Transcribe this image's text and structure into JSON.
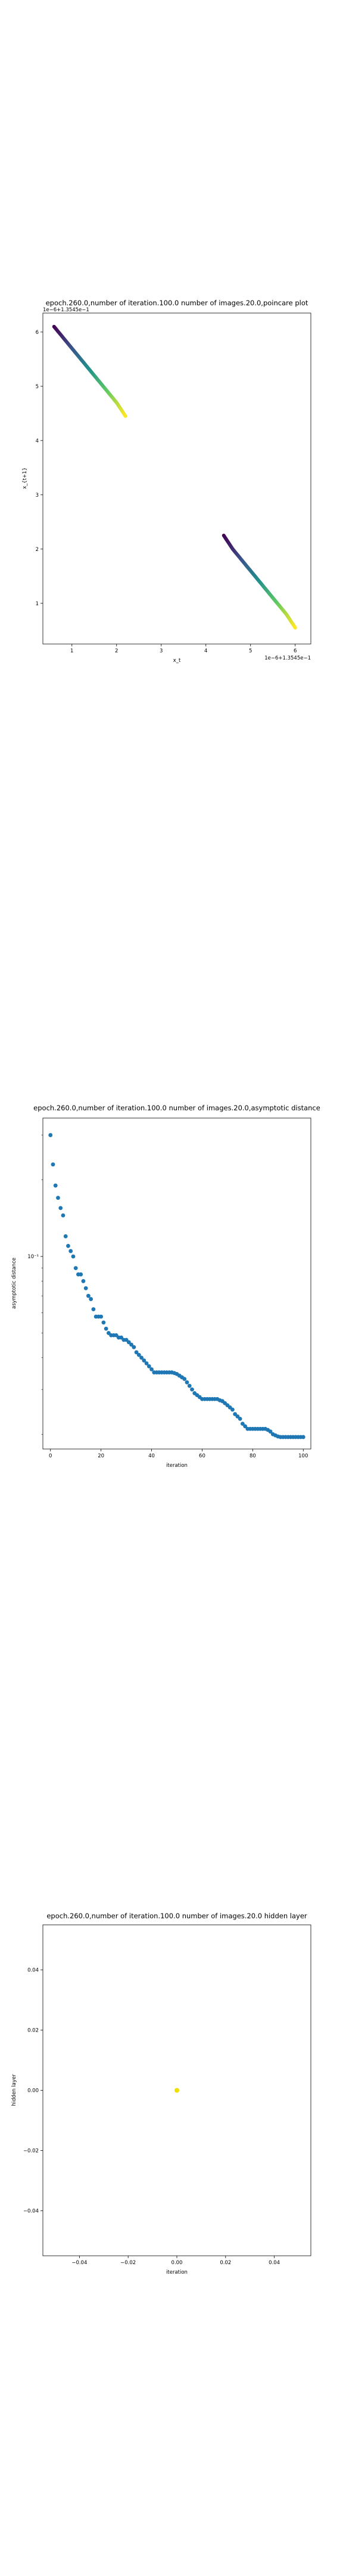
{
  "chart_data": [
    {
      "type": "scatter",
      "title": "epoch.260.0,number of iteration.100.0 number of images.20.0,poincare plot",
      "xlabel": "x_t",
      "ylabel": "x_{t+1}",
      "x_offset_text": "1e−6+1.3545e−1",
      "y_offset_text": "1e−6+1.3545e−1",
      "xlim": [
        0.35,
        6.35
      ],
      "ylim": [
        0.25,
        6.35
      ],
      "xticks": [
        "1",
        "2",
        "3",
        "4",
        "5",
        "6"
      ],
      "yticks": [
        "1",
        "2",
        "3",
        "4",
        "5",
        "6"
      ],
      "colormap": [
        "#440154",
        "#3b528b",
        "#21918c",
        "#5ec962",
        "#fde725"
      ],
      "series": [
        {
          "segment": "upper-left",
          "x": [
            0.6,
            0.8,
            1.0,
            1.2,
            1.4,
            1.6,
            1.8,
            2.0,
            2.2
          ],
          "y": [
            6.1,
            5.9,
            5.7,
            5.5,
            5.3,
            5.1,
            4.9,
            4.7,
            4.45
          ]
        },
        {
          "segment": "lower-right",
          "x": [
            4.4,
            4.6,
            4.8,
            5.0,
            5.2,
            5.4,
            5.6,
            5.8,
            6.0
          ],
          "y": [
            2.25,
            2.0,
            1.8,
            1.6,
            1.4,
            1.2,
            1.0,
            0.8,
            0.55
          ]
        }
      ]
    },
    {
      "type": "scatter",
      "title": "epoch.260.0,number of iteration.100.0  number of images.20.0,asymptotic distance",
      "xlabel": "iteration",
      "ylabel": "asymptotic distance",
      "xlim": [
        -3,
        103
      ],
      "log_y": true,
      "ylim": [
        0.0175,
        0.35
      ],
      "xticks": [
        0,
        20,
        40,
        60,
        80,
        100
      ],
      "yticks": [
        {
          "value": 0.1,
          "label": "10⁻¹"
        }
      ],
      "marker_color": "#1f77b4",
      "x": [
        0,
        1,
        2,
        3,
        4,
        5,
        6,
        7,
        8,
        9,
        10,
        11,
        12,
        13,
        14,
        15,
        16,
        17,
        18,
        19,
        20,
        21,
        22,
        23,
        24,
        25,
        26,
        27,
        28,
        29,
        30,
        31,
        32,
        33,
        34,
        35,
        36,
        37,
        38,
        39,
        40,
        41,
        42,
        43,
        44,
        45,
        46,
        47,
        48,
        49,
        50,
        51,
        52,
        53,
        54,
        55,
        56,
        57,
        58,
        59,
        60,
        61,
        62,
        63,
        64,
        65,
        66,
        67,
        68,
        69,
        70,
        71,
        72,
        73,
        74,
        75,
        76,
        77,
        78,
        79,
        80,
        81,
        82,
        83,
        84,
        85,
        86,
        87,
        88,
        89,
        90,
        91,
        92,
        93,
        94,
        95,
        96,
        97,
        98,
        99,
        100
      ],
      "y": [
        0.3,
        0.23,
        0.19,
        0.17,
        0.155,
        0.145,
        0.12,
        0.11,
        0.105,
        0.1,
        0.09,
        0.085,
        0.085,
        0.08,
        0.075,
        0.07,
        0.068,
        0.062,
        0.058,
        0.058,
        0.058,
        0.055,
        0.052,
        0.05,
        0.049,
        0.049,
        0.049,
        0.048,
        0.048,
        0.047,
        0.047,
        0.046,
        0.045,
        0.044,
        0.042,
        0.041,
        0.04,
        0.039,
        0.038,
        0.037,
        0.036,
        0.035,
        0.035,
        0.035,
        0.035,
        0.035,
        0.035,
        0.035,
        0.035,
        0.0348,
        0.0345,
        0.034,
        0.0335,
        0.033,
        0.032,
        0.031,
        0.03,
        0.029,
        0.0285,
        0.028,
        0.0275,
        0.0275,
        0.0275,
        0.0275,
        0.0275,
        0.0275,
        0.0275,
        0.0272,
        0.027,
        0.0265,
        0.026,
        0.0255,
        0.025,
        0.024,
        0.0235,
        0.023,
        0.022,
        0.0215,
        0.021,
        0.021,
        0.021,
        0.021,
        0.021,
        0.021,
        0.021,
        0.021,
        0.0208,
        0.0205,
        0.02,
        0.0198,
        0.0196,
        0.0195,
        0.0195,
        0.0195,
        0.0195,
        0.0195,
        0.0195,
        0.0195,
        0.0195,
        0.0195,
        0.0195
      ]
    },
    {
      "type": "scatter",
      "title": "epoch.260.0,number of iteration.100.0  number of images.20.0 hidden layer",
      "xlabel": "iteration",
      "ylabel": "hidden layer",
      "xlim": [
        -0.055,
        0.055
      ],
      "ylim": [
        -0.055,
        0.055
      ],
      "xticks": [
        "−0.04",
        "−0.02",
        "0.00",
        "0.02",
        "0.04"
      ],
      "yticks": [
        "−0.04",
        "−0.02",
        "0.00",
        "0.02",
        "0.04"
      ],
      "marker_color": "#f0e000",
      "x": [
        0.0
      ],
      "y": [
        0.0
      ]
    }
  ]
}
